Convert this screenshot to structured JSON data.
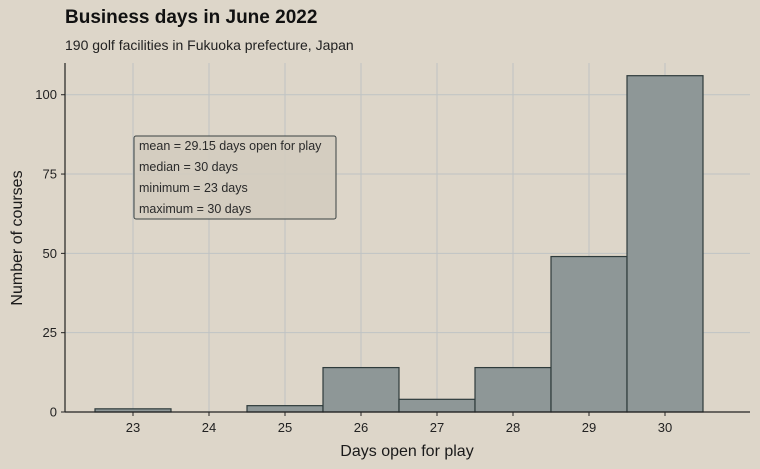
{
  "chart_data": {
    "type": "bar",
    "title": "Business days in June 2022",
    "subtitle": "190 golf facilities in Fukuoka prefecture, Japan",
    "xlabel": "Days open for play",
    "ylabel": "Number of courses",
    "categories": [
      "23",
      "24",
      "25",
      "26",
      "27",
      "28",
      "29",
      "30"
    ],
    "values": [
      1,
      0,
      2,
      14,
      4,
      14,
      49,
      106
    ],
    "ylim": [
      0,
      110
    ],
    "y_ticks": [
      "0",
      "25",
      "50",
      "75",
      "100"
    ],
    "grid": true,
    "annotation": [
      "mean = 29.15 days open for play",
      "median = 30 days",
      "minimum = 23 days",
      "maximum = 30 days"
    ],
    "colors": {
      "background": "#ddd6c9",
      "bar_fill": "#8e9797",
      "bar_stroke": "#2e3b3b",
      "grid": "#bfc3c4",
      "annotation_fill": "#d3ccbf",
      "annotation_stroke": "#3a4242"
    }
  }
}
